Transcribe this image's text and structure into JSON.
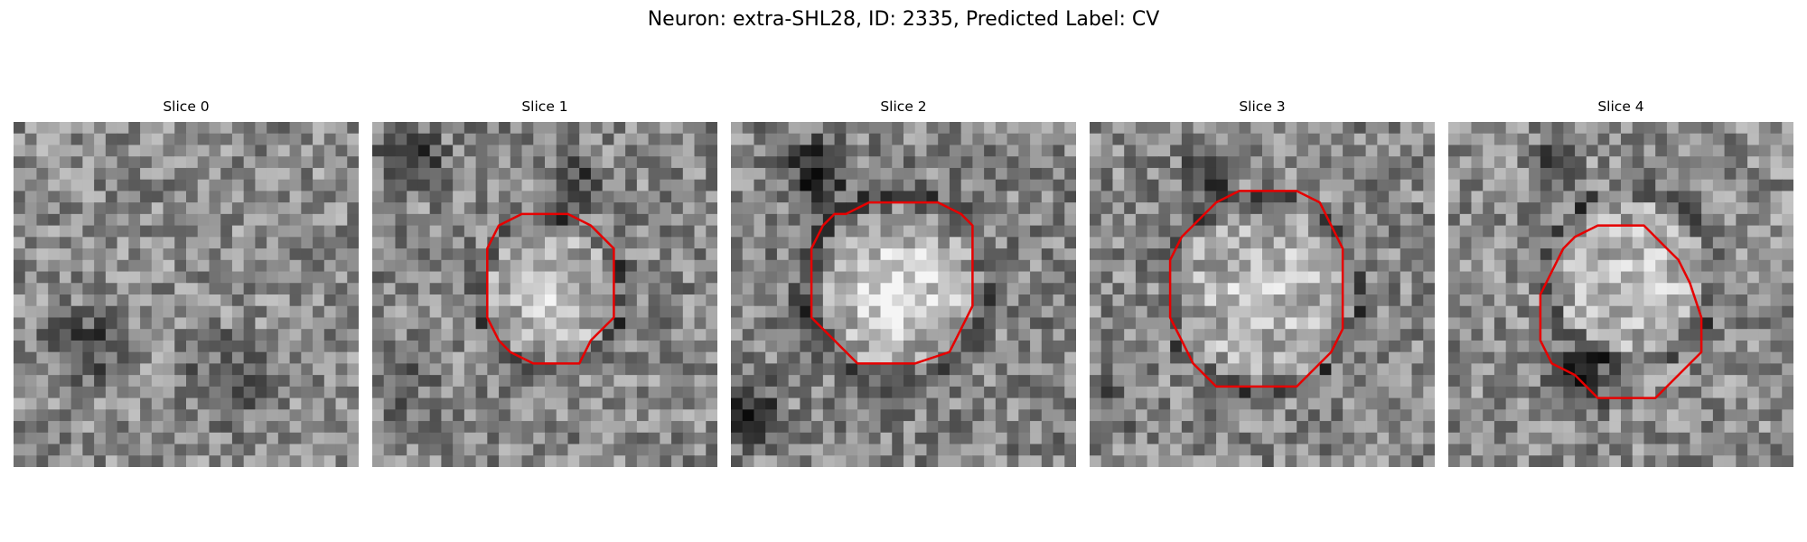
{
  "figure": {
    "title": "Neuron: extra-SHL28, ID: 2335, Predicted Label: CV"
  },
  "panels": [
    {
      "title": "Slice 0",
      "has_outline": false,
      "seed": 11
    },
    {
      "title": "Slice 1",
      "has_outline": true,
      "seed": 23
    },
    {
      "title": "Slice 2",
      "has_outline": true,
      "seed": 37
    },
    {
      "title": "Slice 3",
      "has_outline": true,
      "seed": 41
    },
    {
      "title": "Slice 4",
      "has_outline": true,
      "seed": 53
    }
  ],
  "colors": {
    "outline": "#e60000"
  }
}
